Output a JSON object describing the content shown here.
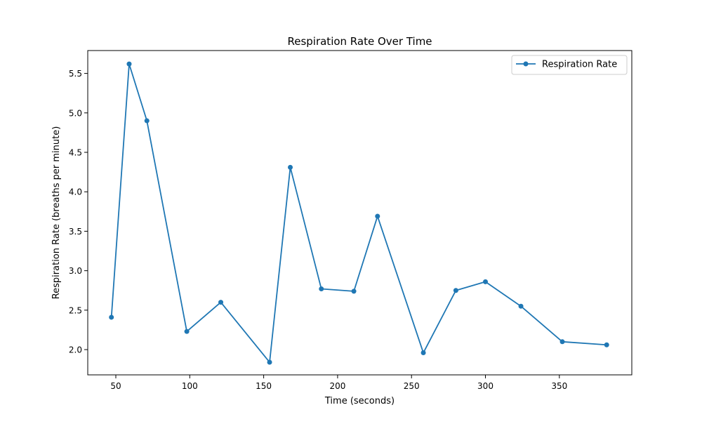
{
  "chart_data": {
    "type": "line",
    "title": "Respiration Rate Over Time",
    "xlabel": "Time (seconds)",
    "ylabel": "Respiration Rate (breaths per minute)",
    "xlim": [
      31,
      399
    ],
    "ylim": [
      1.68,
      5.79
    ],
    "xticks": [
      50,
      100,
      150,
      200,
      250,
      300,
      350
    ],
    "yticks": [
      2.0,
      2.5,
      3.0,
      3.5,
      4.0,
      4.5,
      5.0,
      5.5
    ],
    "grid": false,
    "legend_position": "top-right",
    "series": [
      {
        "name": "Respiration Rate",
        "color": "#1f77b4",
        "marker": "circle",
        "x": [
          47,
          59,
          71,
          98,
          121,
          154,
          168,
          189,
          211,
          227,
          258,
          280,
          300,
          324,
          352,
          382
        ],
        "y": [
          2.41,
          5.62,
          4.9,
          2.23,
          2.6,
          1.84,
          4.31,
          2.77,
          2.74,
          3.69,
          1.96,
          2.75,
          2.86,
          2.55,
          2.1,
          2.06
        ]
      }
    ]
  }
}
